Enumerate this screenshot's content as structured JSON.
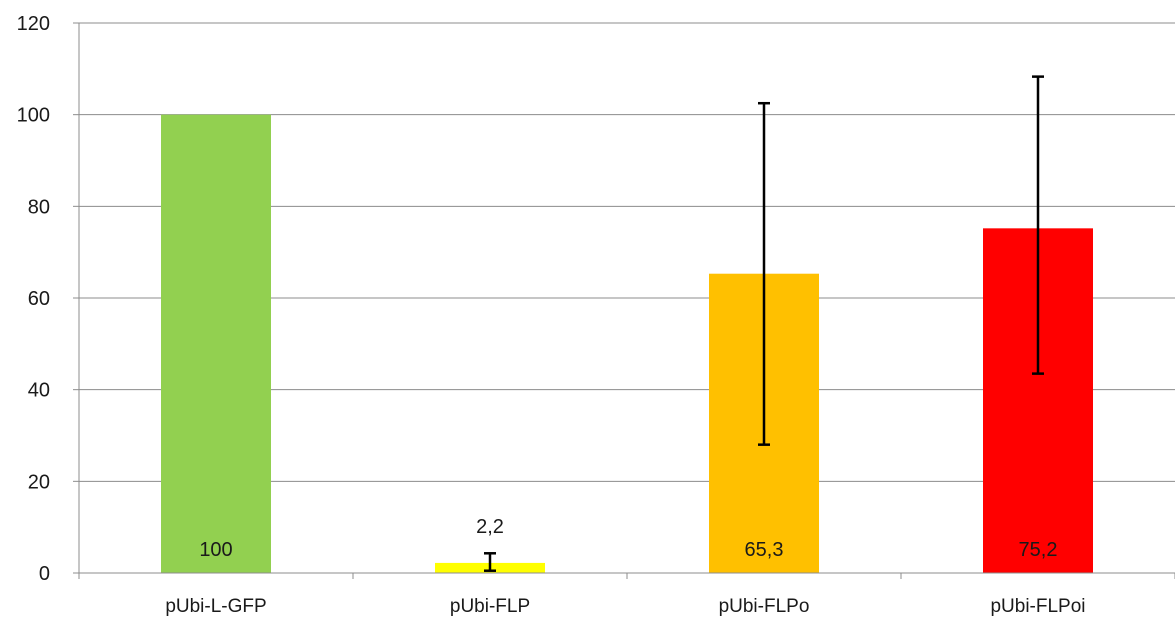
{
  "chart_data": {
    "type": "bar",
    "title": "",
    "xlabel": "",
    "ylabel": "",
    "categories": [
      "pUbi-L-GFP",
      "pUbi-FLP",
      "pUbi-FLPo",
      "pUbi-FLPoi"
    ],
    "values": [
      100,
      2.2,
      65.3,
      75.2
    ],
    "data_labels": [
      "100",
      "2,2",
      "65,3",
      "75,2"
    ],
    "error_low": [
      null,
      0.5,
      28,
      43.5
    ],
    "error_high": [
      null,
      4.3,
      102.5,
      108.3
    ],
    "colors": [
      "#92d050",
      "#ffff00",
      "#ffc000",
      "#ff0000"
    ],
    "ylim": [
      0,
      120
    ],
    "yticks": [
      "0",
      "20",
      "40",
      "60",
      "80",
      "100",
      "120"
    ],
    "grid": true,
    "legend": "none"
  }
}
